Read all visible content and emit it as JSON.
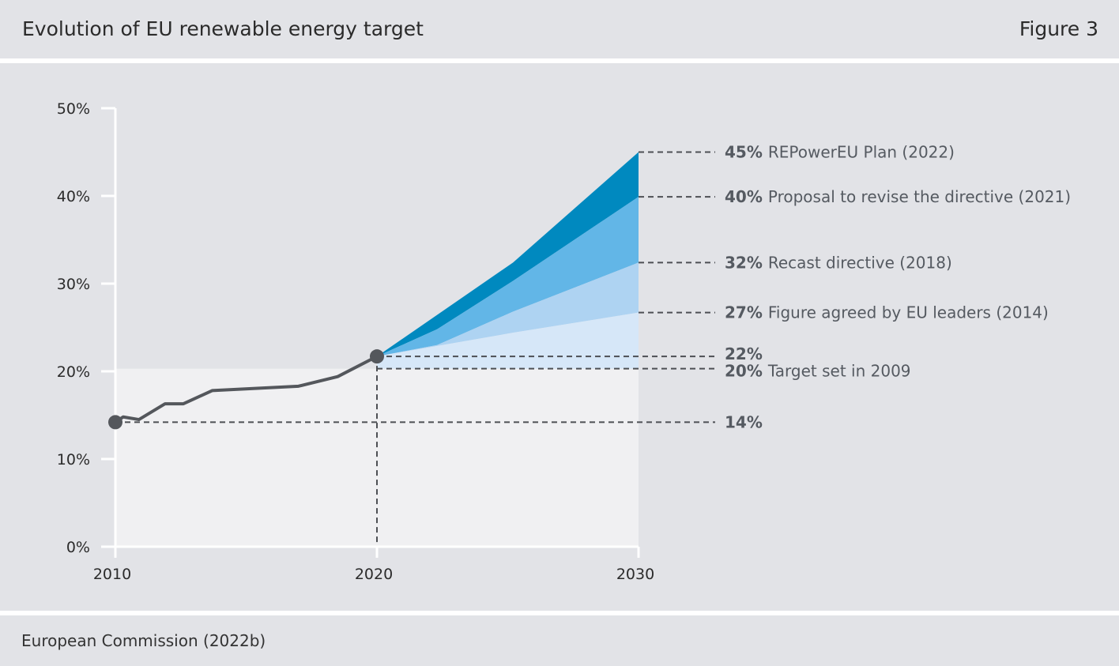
{
  "header": {
    "title": "Evolution of EU renewable energy target",
    "figure_label": "Figure 3"
  },
  "footer": {
    "source": "European Commission (2022b)"
  },
  "colors": {
    "panel_bg": "#e2e3e7",
    "plot_area": "#f0f0f2",
    "line": "#54575c",
    "band_2009": "#d6e7f8",
    "band_2014": "#aed3f2",
    "band_2018": "#62b6e7",
    "band_2021": "#0089bf",
    "annotation": "#555a61"
  },
  "chart_data": {
    "type": "line",
    "title": "Evolution of EU renewable energy target",
    "xlim": [
      2010,
      2030
    ],
    "ylim": [
      0,
      50
    ],
    "x_ticks": [
      "2010",
      "2020",
      "2030"
    ],
    "y_ticks": [
      "0%",
      "10%",
      "20%",
      "30%",
      "40%",
      "50%"
    ],
    "grid": false,
    "series": [
      {
        "type": "line",
        "x": [
          2010,
          2010.3,
          2010.9,
          2011.9,
          2012.6,
          2013.7,
          2017.0,
          2018.5,
          2020
        ],
        "y": [
          14.2,
          14.8,
          14.5,
          16.3,
          16.3,
          17.8,
          18.3,
          19.4,
          21.7
        ]
      }
    ],
    "target_bands": [
      {
        "value": "20%",
        "label": "Target set in 2009",
        "x": [
          2020,
          2030
        ],
        "y": [
          20.3,
          20.3
        ]
      },
      {
        "value": "27%",
        "label": "Figure agreed by EU leaders (2014)",
        "x": [
          2020,
          2025.2,
          2030
        ],
        "y": [
          21.7,
          24.4,
          26.7
        ]
      },
      {
        "value": "32%",
        "label": "Recast directive (2018)",
        "x": [
          2020,
          2022.3,
          2025.2,
          2030
        ],
        "y": [
          21.7,
          23.0,
          26.8,
          32.4
        ]
      },
      {
        "value": "40%",
        "label": "Proposal to revise the directive (2021)",
        "x": [
          2020,
          2022.3,
          2025.2,
          2030
        ],
        "y": [
          21.7,
          24.8,
          30.3,
          39.9
        ]
      },
      {
        "value": "45%",
        "label": "REPowerEU Plan (2022)",
        "x": [
          2020,
          2025.2,
          2030
        ],
        "y": [
          21.7,
          32.4,
          45.0
        ]
      }
    ],
    "annotations": [
      {
        "value": "45%",
        "label": "REPowerEU Plan (2022)",
        "y": 45.0
      },
      {
        "value": "40%",
        "label": "Proposal to revise the directive (2021)",
        "y": 39.9
      },
      {
        "value": "32%",
        "label": "Recast directive (2018)",
        "y": 32.4
      },
      {
        "value": "27%",
        "label": "Figure agreed by EU leaders (2014)",
        "y": 26.7
      },
      {
        "value": "22%",
        "label": "",
        "y": 21.7
      },
      {
        "value": "20%",
        "label": "Target set in 2009",
        "y": 20.3
      },
      {
        "value": "14%",
        "label": "",
        "y": 14.2
      }
    ],
    "markers": [
      {
        "x": 2010,
        "y": 14.2
      },
      {
        "x": 2020,
        "y": 21.7
      }
    ]
  }
}
